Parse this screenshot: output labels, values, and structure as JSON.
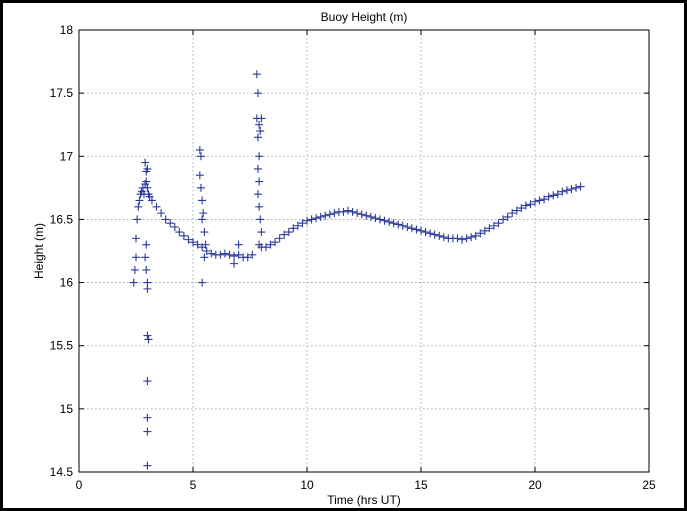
{
  "chart_data": {
    "type": "scatter",
    "title": "Buoy Height (m)",
    "xlabel": "Time (hrs UT)",
    "ylabel": "Height (m)",
    "xlim": [
      0,
      25
    ],
    "ylim": [
      14.5,
      18
    ],
    "xticks": [
      0,
      5,
      10,
      15,
      20,
      25
    ],
    "yticks": [
      14.5,
      15,
      15.5,
      16,
      16.5,
      17,
      17.5,
      18
    ],
    "xtick_labels": [
      "0",
      "5",
      "10",
      "15",
      "20",
      "25"
    ],
    "ytick_labels": [
      "14.5",
      "15",
      "15.5",
      "16",
      "16.5",
      "17",
      "17.5",
      "18"
    ],
    "grid": true,
    "marker": "+",
    "marker_color": "#2b3a9a",
    "series": [
      {
        "points": [
          [
            2.4,
            16.0
          ],
          [
            2.45,
            16.1
          ],
          [
            2.5,
            16.2
          ],
          [
            2.5,
            16.35
          ],
          [
            2.55,
            16.5
          ],
          [
            2.6,
            16.6
          ],
          [
            2.65,
            16.65
          ],
          [
            2.7,
            16.7
          ],
          [
            2.75,
            16.72
          ],
          [
            2.8,
            16.75
          ],
          [
            2.85,
            16.7
          ],
          [
            2.9,
            16.78
          ],
          [
            2.95,
            16.8
          ],
          [
            3.0,
            16.75
          ],
          [
            3.05,
            16.7
          ],
          [
            3.1,
            16.68
          ],
          [
            2.9,
            16.95
          ],
          [
            2.95,
            16.88
          ],
          [
            3.0,
            16.9
          ],
          [
            2.9,
            16.2
          ],
          [
            2.95,
            16.1
          ],
          [
            3.0,
            15.95
          ],
          [
            3.05,
            15.55
          ],
          [
            3.0,
            15.58
          ],
          [
            3.0,
            15.22
          ],
          [
            3.0,
            14.93
          ],
          [
            3.0,
            14.82
          ],
          [
            3.0,
            14.55
          ],
          [
            2.95,
            16.3
          ],
          [
            3.0,
            16.0
          ],
          [
            3.2,
            16.65
          ],
          [
            3.4,
            16.6
          ],
          [
            3.6,
            16.55
          ],
          [
            3.8,
            16.5
          ],
          [
            4.0,
            16.47
          ],
          [
            4.2,
            16.44
          ],
          [
            4.4,
            16.4
          ],
          [
            4.6,
            16.37
          ],
          [
            4.8,
            16.34
          ],
          [
            5.0,
            16.32
          ],
          [
            5.2,
            16.3
          ],
          [
            5.4,
            16.28
          ],
          [
            5.6,
            16.25
          ],
          [
            5.8,
            16.23
          ],
          [
            6.0,
            16.22
          ],
          [
            5.3,
            17.05
          ],
          [
            5.35,
            17.0
          ],
          [
            5.3,
            16.85
          ],
          [
            5.35,
            16.75
          ],
          [
            5.4,
            16.65
          ],
          [
            5.45,
            16.55
          ],
          [
            5.4,
            16.5
          ],
          [
            5.5,
            16.4
          ],
          [
            5.5,
            16.2
          ],
          [
            5.4,
            16.0
          ],
          [
            5.55,
            16.3
          ],
          [
            6.2,
            16.22
          ],
          [
            6.4,
            16.23
          ],
          [
            6.6,
            16.22
          ],
          [
            6.8,
            16.21
          ],
          [
            7.0,
            16.22
          ],
          [
            7.2,
            16.2
          ],
          [
            7.4,
            16.2
          ],
          [
            7.6,
            16.22
          ],
          [
            6.8,
            16.15
          ],
          [
            7.0,
            16.3
          ],
          [
            7.8,
            17.65
          ],
          [
            7.85,
            17.5
          ],
          [
            7.8,
            17.3
          ],
          [
            7.9,
            17.25
          ],
          [
            7.85,
            17.15
          ],
          [
            7.9,
            17.0
          ],
          [
            7.85,
            16.9
          ],
          [
            7.9,
            16.8
          ],
          [
            7.85,
            16.7
          ],
          [
            7.9,
            16.6
          ],
          [
            7.95,
            16.5
          ],
          [
            8.0,
            16.4
          ],
          [
            7.9,
            16.3
          ],
          [
            8.0,
            17.3
          ],
          [
            7.95,
            17.2
          ],
          [
            8.0,
            16.28
          ],
          [
            8.2,
            16.28
          ],
          [
            8.4,
            16.3
          ],
          [
            8.6,
            16.32
          ],
          [
            8.8,
            16.35
          ],
          [
            9.0,
            16.38
          ],
          [
            9.2,
            16.4
          ],
          [
            9.4,
            16.43
          ],
          [
            9.6,
            16.45
          ],
          [
            9.8,
            16.47
          ],
          [
            10.0,
            16.49
          ],
          [
            10.2,
            16.5
          ],
          [
            10.4,
            16.51
          ],
          [
            10.6,
            16.52
          ],
          [
            10.8,
            16.53
          ],
          [
            11.0,
            16.54
          ],
          [
            11.2,
            16.55
          ],
          [
            11.4,
            16.56
          ],
          [
            11.6,
            16.56
          ],
          [
            11.8,
            16.57
          ],
          [
            12.0,
            16.56
          ],
          [
            12.2,
            16.55
          ],
          [
            12.4,
            16.54
          ],
          [
            12.6,
            16.53
          ],
          [
            12.8,
            16.52
          ],
          [
            13.0,
            16.51
          ],
          [
            13.2,
            16.5
          ],
          [
            13.4,
            16.49
          ],
          [
            13.6,
            16.48
          ],
          [
            13.8,
            16.47
          ],
          [
            14.0,
            16.46
          ],
          [
            14.2,
            16.45
          ],
          [
            14.4,
            16.44
          ],
          [
            14.6,
            16.43
          ],
          [
            14.8,
            16.42
          ],
          [
            15.0,
            16.41
          ],
          [
            15.2,
            16.4
          ],
          [
            15.4,
            16.39
          ],
          [
            15.6,
            16.38
          ],
          [
            15.8,
            16.37
          ],
          [
            16.0,
            16.36
          ],
          [
            16.2,
            16.35
          ],
          [
            16.4,
            16.35
          ],
          [
            16.6,
            16.35
          ],
          [
            16.8,
            16.34
          ],
          [
            17.0,
            16.35
          ],
          [
            17.2,
            16.36
          ],
          [
            17.4,
            16.37
          ],
          [
            17.6,
            16.39
          ],
          [
            17.8,
            16.41
          ],
          [
            18.0,
            16.43
          ],
          [
            18.2,
            16.45
          ],
          [
            18.4,
            16.47
          ],
          [
            18.6,
            16.5
          ],
          [
            18.8,
            16.52
          ],
          [
            19.0,
            16.55
          ],
          [
            19.2,
            16.57
          ],
          [
            19.4,
            16.59
          ],
          [
            19.6,
            16.61
          ],
          [
            19.8,
            16.62
          ],
          [
            20.0,
            16.64
          ],
          [
            20.2,
            16.65
          ],
          [
            20.4,
            16.66
          ],
          [
            20.6,
            16.68
          ],
          [
            20.8,
            16.69
          ],
          [
            21.0,
            16.7
          ],
          [
            21.2,
            16.72
          ],
          [
            21.4,
            16.73
          ],
          [
            21.6,
            16.74
          ],
          [
            21.8,
            16.75
          ],
          [
            22.0,
            16.76
          ]
        ]
      }
    ]
  }
}
